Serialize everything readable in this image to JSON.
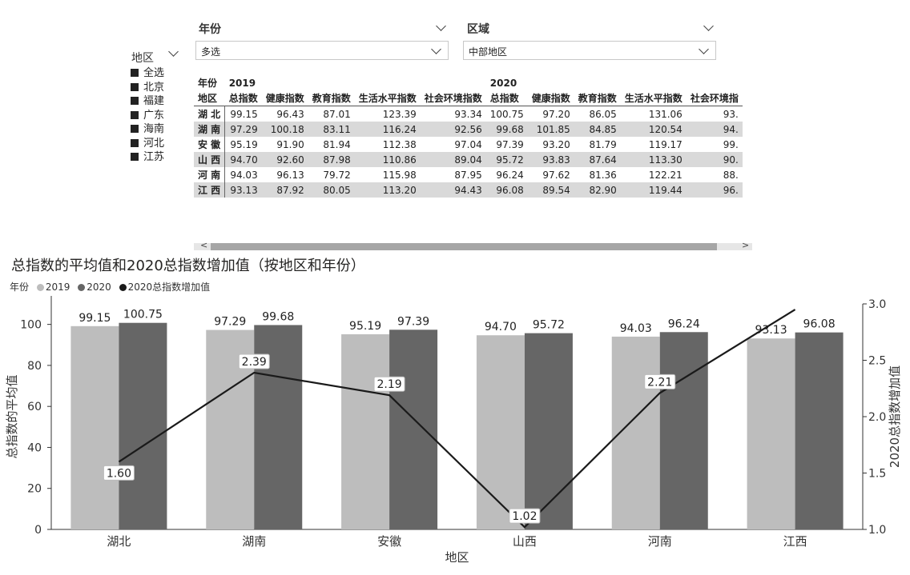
{
  "filters": {
    "year": {
      "label": "年份",
      "value": "多选"
    },
    "region": {
      "label": "区域",
      "value": "中部地区"
    }
  },
  "slicer": {
    "title": "地区",
    "items": [
      "全选",
      "北京",
      "福建",
      "广东",
      "海南",
      "河北",
      "江苏"
    ]
  },
  "matrix": {
    "row_header_top": "年份",
    "row_header_bottom": "地区",
    "years": [
      "2019",
      "2020"
    ],
    "columns_2019": [
      "总指数",
      "健康指数",
      "教育指数",
      "生活水平指数",
      "社会环境指数"
    ],
    "columns_2020": [
      "总指数",
      "健康指数",
      "教育指数",
      "生活水平指数",
      "社会环境指"
    ],
    "rows": [
      {
        "region": "湖 北",
        "values": [
          "99.15",
          "96.43",
          "87.01",
          "123.39",
          "93.34",
          "100.75",
          "97.20",
          "86.05",
          "131.06",
          "93."
        ]
      },
      {
        "region": "湖 南",
        "values": [
          "97.29",
          "100.18",
          "83.11",
          "116.24",
          "92.56",
          "99.68",
          "101.85",
          "84.85",
          "120.54",
          "94."
        ]
      },
      {
        "region": "安 徽",
        "values": [
          "95.19",
          "91.90",
          "81.94",
          "112.38",
          "97.04",
          "97.39",
          "93.20",
          "81.79",
          "119.17",
          "99."
        ]
      },
      {
        "region": "山 西",
        "values": [
          "94.70",
          "92.60",
          "87.98",
          "110.86",
          "89.04",
          "95.72",
          "93.83",
          "87.64",
          "113.30",
          "90."
        ]
      },
      {
        "region": "河 南",
        "values": [
          "94.03",
          "96.13",
          "79.72",
          "115.98",
          "87.95",
          "96.24",
          "97.62",
          "81.36",
          "122.21",
          "88."
        ]
      },
      {
        "region": "江 西",
        "values": [
          "93.13",
          "87.92",
          "80.05",
          "113.20",
          "94.43",
          "96.08",
          "89.54",
          "82.90",
          "119.44",
          "96."
        ]
      }
    ],
    "scroll_left": "<",
    "scroll_right": ">"
  },
  "chart_title": "总指数的平均值和2020总指数增加值（按地区和年份）",
  "legend": {
    "title": "年份",
    "items": [
      {
        "label": "2019",
        "color": "#bdbdbd"
      },
      {
        "label": "2020",
        "color": "#666666"
      },
      {
        "label": "2020总指数增加值",
        "color": "#1a1a1a"
      }
    ]
  },
  "chart_data": {
    "type": "bar",
    "title": "总指数的平均值和2020总指数增加值（按地区和年份）",
    "categories": [
      "湖北",
      "湖南",
      "安徽",
      "山西",
      "河南",
      "江西"
    ],
    "series": [
      {
        "name": "2019",
        "type": "bar",
        "axis": "left",
        "color": "#bdbdbd",
        "values": [
          99.15,
          97.29,
          95.19,
          94.7,
          94.03,
          93.13
        ]
      },
      {
        "name": "2020",
        "type": "bar",
        "axis": "left",
        "color": "#666666",
        "values": [
          100.75,
          99.68,
          97.39,
          95.72,
          96.24,
          96.08
        ]
      },
      {
        "name": "2020总指数增加值",
        "type": "line",
        "axis": "right",
        "color": "#1a1a1a",
        "values": [
          1.6,
          2.39,
          2.19,
          1.02,
          2.21,
          2.95
        ]
      }
    ],
    "line_labels": [
      "1.60",
      "2.39",
      "2.19",
      "1.02",
      "2.21",
      ""
    ],
    "xlabel": "地区",
    "ylabel": "总指数的平均值",
    "ylabel_right": "2020总指数增加值",
    "ylim": [
      0,
      110
    ],
    "yticks": [
      "0",
      "20",
      "40",
      "60",
      "80",
      "100"
    ],
    "y2lim": [
      1.0,
      3.0
    ],
    "y2ticks": [
      "1.0",
      "1.5",
      "2.0",
      "2.5",
      "3.0"
    ],
    "grid": false,
    "legend_position": "top-left"
  }
}
